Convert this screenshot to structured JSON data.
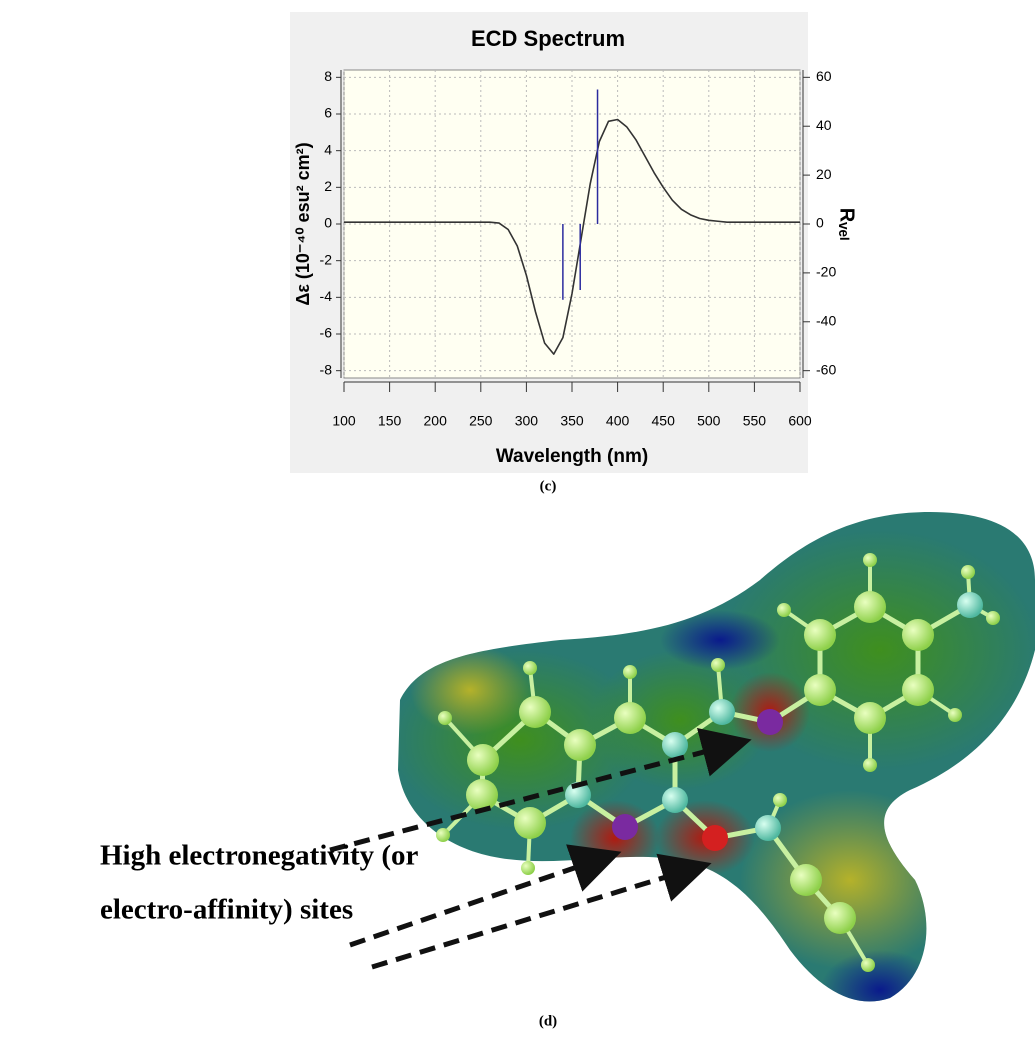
{
  "chart_data": {
    "type": "line",
    "title": "ECD Spectrum",
    "x_label": "Wavelength (nm)",
    "y_label": "Δε (10⁻⁴⁰ esu² cm²)",
    "y2_label": "Rᵥₑₗ",
    "x": [
      100,
      110,
      120,
      130,
      140,
      150,
      160,
      170,
      180,
      190,
      200,
      210,
      220,
      230,
      240,
      250,
      260,
      270,
      280,
      290,
      300,
      310,
      320,
      330,
      340,
      350,
      360,
      370,
      380,
      390,
      400,
      410,
      420,
      430,
      440,
      450,
      460,
      470,
      480,
      490,
      500,
      510,
      520,
      530,
      540,
      550,
      560,
      570,
      580,
      590,
      600
    ],
    "series": [
      {
        "color": "#333333",
        "values": [
          0.1,
          0.1,
          0.1,
          0.1,
          0.1,
          0.1,
          0.1,
          0.1,
          0.1,
          0.1,
          0.1,
          0.1,
          0.1,
          0.1,
          0.1,
          0.1,
          0.1,
          0.05,
          -0.3,
          -1.2,
          -2.8,
          -4.8,
          -6.5,
          -7.1,
          -6.2,
          -3.8,
          -0.8,
          2.2,
          4.5,
          5.6,
          5.7,
          5.3,
          4.6,
          3.7,
          2.8,
          2.0,
          1.3,
          0.8,
          0.5,
          0.3,
          0.2,
          0.15,
          0.1,
          0.1,
          0.1,
          0.1,
          0.1,
          0.1,
          0.1,
          0.1,
          0.1
        ]
      },
      {
        "style": "stick",
        "axis": "y2",
        "color": "#2b2b9e",
        "x": [
          340,
          359,
          378
        ],
        "values": [
          -31,
          -27,
          55
        ]
      }
    ],
    "xlim": [
      100,
      600
    ],
    "ylim": [
      -8.4,
      8.4
    ],
    "y2lim": [
      -63,
      63
    ],
    "xticks": [
      100,
      150,
      200,
      250,
      300,
      350,
      400,
      450,
      500,
      550,
      600
    ],
    "yticks": [
      -8,
      -6,
      -4,
      -2,
      0,
      2,
      4,
      6,
      8
    ],
    "y2ticks": [
      -60,
      -40,
      -20,
      0,
      20,
      40,
      60
    ],
    "grid": true,
    "caption": "(c)"
  },
  "figure_d": {
    "annotation": [
      "High electronegativity (or",
      "electro-affinity) sites"
    ],
    "caption": "(d)"
  }
}
